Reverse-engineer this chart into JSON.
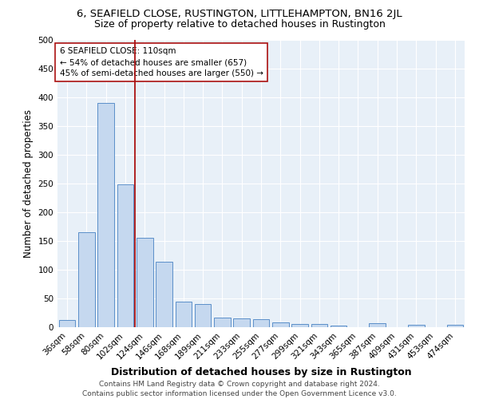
{
  "title": "6, SEAFIELD CLOSE, RUSTINGTON, LITTLEHAMPTON, BN16 2JL",
  "subtitle": "Size of property relative to detached houses in Rustington",
  "xlabel": "Distribution of detached houses by size in Rustington",
  "ylabel": "Number of detached properties",
  "categories": [
    "36sqm",
    "58sqm",
    "80sqm",
    "102sqm",
    "124sqm",
    "146sqm",
    "168sqm",
    "189sqm",
    "211sqm",
    "233sqm",
    "255sqm",
    "277sqm",
    "299sqm",
    "321sqm",
    "343sqm",
    "365sqm",
    "387sqm",
    "409sqm",
    "431sqm",
    "453sqm",
    "474sqm"
  ],
  "values": [
    13,
    165,
    390,
    248,
    156,
    114,
    44,
    40,
    17,
    15,
    14,
    9,
    6,
    5,
    3,
    0,
    7,
    0,
    4,
    0,
    4
  ],
  "bar_color": "#c5d8ef",
  "bar_edge_color": "#5b8fc9",
  "background_color": "#e8f0f8",
  "grid_color": "#ffffff",
  "vline_x_index": 3,
  "vline_color": "#aa1111",
  "annotation_text": "6 SEAFIELD CLOSE: 110sqm\n← 54% of detached houses are smaller (657)\n45% of semi-detached houses are larger (550) →",
  "annotation_box_color": "#ffffff",
  "annotation_box_edge_color": "#aa1111",
  "ylim": [
    0,
    500
  ],
  "yticks": [
    0,
    50,
    100,
    150,
    200,
    250,
    300,
    350,
    400,
    450,
    500
  ],
  "footer": "Contains HM Land Registry data © Crown copyright and database right 2024.\nContains public sector information licensed under the Open Government Licence v3.0.",
  "title_fontsize": 9.5,
  "subtitle_fontsize": 9,
  "xlabel_fontsize": 9,
  "ylabel_fontsize": 8.5,
  "tick_fontsize": 7.5,
  "annotation_fontsize": 7.5,
  "footer_fontsize": 6.5
}
